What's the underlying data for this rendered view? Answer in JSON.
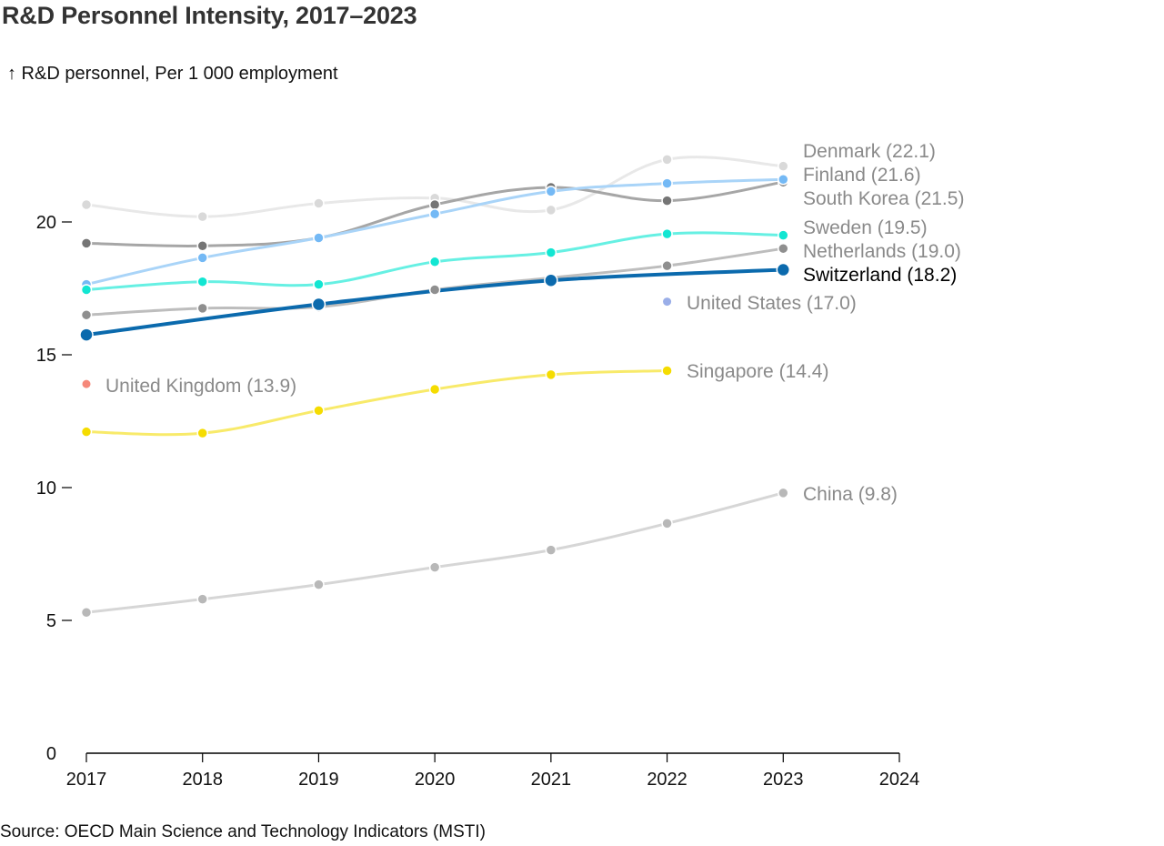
{
  "chart_data": {
    "type": "line",
    "title": "R&D Personnel Intensity, 2017–2023",
    "ylabel": "↑ R&D personnel, Per 1 000 employment",
    "xlabel": "",
    "source": "Source: OECD Main Science and Technology Indicators (MSTI)",
    "x": [
      2017,
      2018,
      2019,
      2020,
      2021,
      2022,
      2023
    ],
    "xlim": [
      2017,
      2024
    ],
    "ylim": [
      0,
      23
    ],
    "xticks": [
      "2017",
      "2018",
      "2019",
      "2020",
      "2021",
      "2022",
      "2023",
      "2024"
    ],
    "yticks": [
      "0",
      "5",
      "10",
      "15",
      "20"
    ],
    "ytick_values": [
      0,
      5,
      10,
      15,
      20
    ],
    "grid": false,
    "series": [
      {
        "name": "Denmark",
        "label": "Denmark (22.1)",
        "color": "#d9d9d9",
        "line_color": "#e8e8e8",
        "highlight": false,
        "values": [
          20.65,
          20.2,
          20.7,
          20.9,
          20.45,
          22.35,
          22.1
        ]
      },
      {
        "name": "South Korea",
        "label": "South Korea (21.5)",
        "color": "#757575",
        "line_color": "#a6a6a6",
        "highlight": false,
        "values": [
          19.2,
          19.1,
          19.4,
          20.65,
          21.3,
          20.8,
          21.5
        ]
      },
      {
        "name": "Finland",
        "label": "Finland (21.6)",
        "color": "#74b9f5",
        "line_color": "#a9d4f8",
        "highlight": false,
        "values": [
          17.65,
          18.65,
          19.4,
          20.3,
          21.15,
          21.45,
          21.6
        ]
      },
      {
        "name": "Sweden",
        "label": "Sweden (19.5)",
        "color": "#12e6d2",
        "line_color": "#66f0e3",
        "highlight": false,
        "values": [
          17.45,
          17.75,
          17.65,
          18.5,
          18.85,
          19.55,
          19.5
        ]
      },
      {
        "name": "Netherlands",
        "label": "Netherlands (19.0)",
        "color": "#8f8f8f",
        "line_color": "#bdbdbd",
        "highlight": false,
        "values": [
          16.5,
          16.75,
          16.8,
          17.45,
          17.9,
          18.35,
          19.0
        ]
      },
      {
        "name": "Switzerland",
        "label": "Switzerland (18.2)",
        "color": "#0b6aad",
        "line_color": "#0b6aad",
        "highlight": true,
        "values": [
          15.75,
          null,
          16.9,
          null,
          17.8,
          null,
          18.2
        ]
      },
      {
        "name": "United States",
        "label": "United States (17.0)",
        "color": "#9aaee8",
        "line_color": "#9aaee8",
        "highlight": false,
        "values": [
          null,
          null,
          null,
          null,
          null,
          17.0,
          null
        ]
      },
      {
        "name": "United Kingdom",
        "label": "United Kingdom (13.9)",
        "color": "#f5887a",
        "line_color": "#f5887a",
        "highlight": false,
        "values": [
          13.9,
          null,
          null,
          null,
          null,
          null,
          null
        ]
      },
      {
        "name": "Singapore",
        "label": "Singapore (14.4)",
        "color": "#f5dc00",
        "line_color": "#f8ea6a",
        "highlight": false,
        "values": [
          12.1,
          12.05,
          12.9,
          13.7,
          14.25,
          14.4,
          null
        ]
      },
      {
        "name": "China",
        "label": "China (9.8)",
        "color": "#b8b8b8",
        "line_color": "#d6d6d6",
        "highlight": false,
        "values": [
          5.3,
          5.8,
          6.35,
          7.0,
          7.65,
          8.65,
          9.8
        ]
      }
    ]
  }
}
